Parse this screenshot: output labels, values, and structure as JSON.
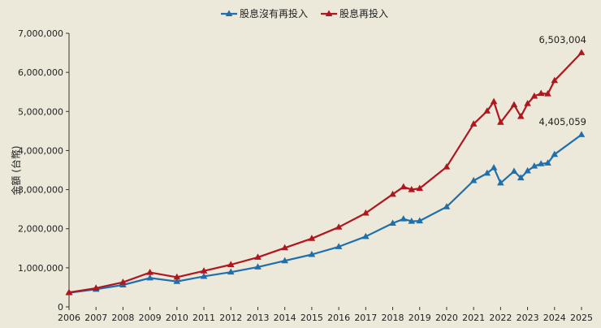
{
  "chart_data": {
    "type": "line",
    "title": "",
    "xlabel": "",
    "ylabel": "金額 (台幣)",
    "xlim": [
      2006,
      2025
    ],
    "ylim": [
      0,
      7000000
    ],
    "yticks": [
      0,
      1000000,
      2000000,
      3000000,
      4000000,
      5000000,
      6000000,
      7000000
    ],
    "ytick_labels": [
      "0",
      "1,000,000",
      "2,000,000",
      "3,000,000",
      "4,000,000",
      "5,000,000",
      "6,000,000",
      "7,000,000"
    ],
    "xticks": [
      "2006",
      "2007",
      "2008",
      "2009",
      "2010",
      "2011",
      "2012",
      "2013",
      "2014",
      "2015",
      "2016",
      "2017",
      "2018",
      "2019",
      "2020",
      "2021",
      "2022",
      "2023",
      "2024",
      "2025"
    ],
    "legend_position": "top-center",
    "series": [
      {
        "name": "股息沒有再投入",
        "color": "#1f6fad",
        "x": [
          2006,
          2007,
          2008,
          2009,
          2010,
          2011,
          2012,
          2013,
          2014,
          2015,
          2016,
          2017,
          2018,
          2018.4,
          2018.7,
          2019,
          2020,
          2021,
          2021.5,
          2021.75,
          2022,
          2022.5,
          2022.75,
          2023,
          2023.25,
          2023.5,
          2023.75,
          2024,
          2025
        ],
        "values": [
          360000,
          450000,
          560000,
          740000,
          650000,
          780000,
          890000,
          1020000,
          1180000,
          1340000,
          1540000,
          1800000,
          2140000,
          2250000,
          2190000,
          2200000,
          2560000,
          3230000,
          3420000,
          3560000,
          3170000,
          3470000,
          3300000,
          3480000,
          3600000,
          3660000,
          3680000,
          3900000,
          4405059
        ],
        "end_label": "4,405,059"
      },
      {
        "name": "股息再投入",
        "color": "#b0161e",
        "x": [
          2006,
          2007,
          2008,
          2009,
          2010,
          2011,
          2012,
          2013,
          2014,
          2015,
          2016,
          2017,
          2018,
          2018.4,
          2018.7,
          2019,
          2020,
          2021,
          2021.5,
          2021.75,
          2022,
          2022.5,
          2022.75,
          2023,
          2023.25,
          2023.5,
          2023.75,
          2024,
          2025
        ],
        "values": [
          370000,
          480000,
          630000,
          880000,
          760000,
          920000,
          1080000,
          1270000,
          1510000,
          1750000,
          2040000,
          2400000,
          2880000,
          3070000,
          3000000,
          3030000,
          3580000,
          4680000,
          5010000,
          5250000,
          4720000,
          5170000,
          4870000,
          5200000,
          5390000,
          5460000,
          5450000,
          5790000,
          6503004
        ],
        "end_label": "6,503,004"
      }
    ]
  }
}
